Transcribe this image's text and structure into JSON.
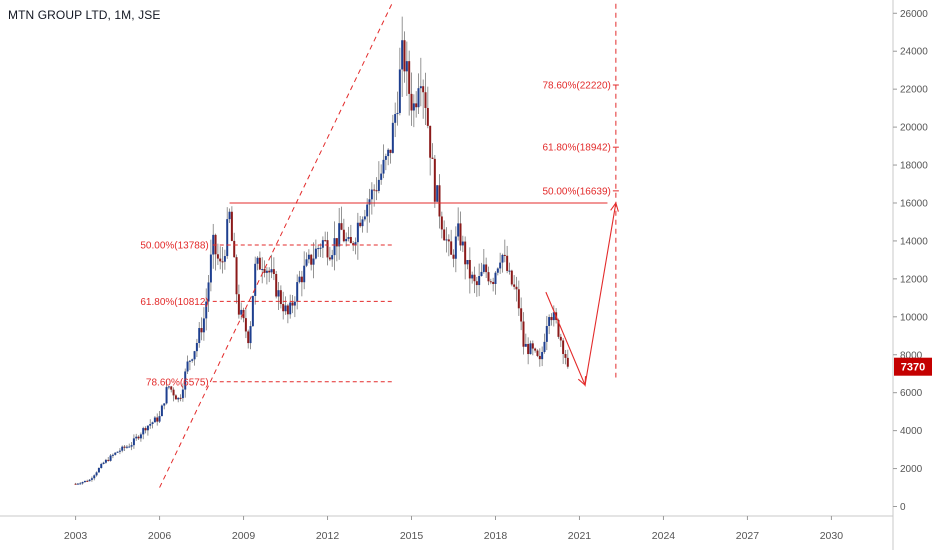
{
  "header": {
    "title": "MTN GROUP LTD, 1M, JSE"
  },
  "price_badge": {
    "value": "7370",
    "color": "#c40000"
  },
  "colors": {
    "up": "#1e3f8f",
    "down": "#8b1a1a",
    "annotation": "#e32b2b",
    "grid": "#e6e6e6",
    "axis_text": "#555555"
  },
  "chart_data": {
    "type": "candlestick",
    "title": "MTN GROUP LTD, 1M, JSE",
    "xlabel": "",
    "ylabel": "",
    "x_ticks": [
      "2003",
      "2006",
      "2009",
      "2012",
      "2015",
      "2018",
      "2021",
      "2024",
      "2027",
      "2030"
    ],
    "y_ticks": [
      0,
      2000,
      4000,
      6000,
      8000,
      10000,
      12000,
      14000,
      16000,
      18000,
      20000,
      22000,
      24000,
      26000
    ],
    "xlim": [
      2000.3,
      2032.2
    ],
    "ylim": [
      -500,
      26700
    ],
    "last_price": 7370,
    "price_path": [
      [
        2003.0,
        1200
      ],
      [
        2003.5,
        1400
      ],
      [
        2004.0,
        2300
      ],
      [
        2004.5,
        2900
      ],
      [
        2005.0,
        3300
      ],
      [
        2005.5,
        4200
      ],
      [
        2006.0,
        4700
      ],
      [
        2006.3,
        6400
      ],
      [
        2006.7,
        5600
      ],
      [
        2007.0,
        7500
      ],
      [
        2007.3,
        8500
      ],
      [
        2007.6,
        10000
      ],
      [
        2007.9,
        13800
      ],
      [
        2008.2,
        12500
      ],
      [
        2008.5,
        15300
      ],
      [
        2008.8,
        10500
      ],
      [
        2009.2,
        8800
      ],
      [
        2009.4,
        12500
      ],
      [
        2009.7,
        13000
      ],
      [
        2010.0,
        12100
      ],
      [
        2010.3,
        11000
      ],
      [
        2010.6,
        10000
      ],
      [
        2011.0,
        12000
      ],
      [
        2011.4,
        13000
      ],
      [
        2011.8,
        14000
      ],
      [
        2012.1,
        13600
      ],
      [
        2012.5,
        14500
      ],
      [
        2012.8,
        13500
      ],
      [
        2013.2,
        15500
      ],
      [
        2013.6,
        16500
      ],
      [
        2013.9,
        17500
      ],
      [
        2014.2,
        18500
      ],
      [
        2014.4,
        20500
      ],
      [
        2014.7,
        24000
      ],
      [
        2014.9,
        22000
      ],
      [
        2015.1,
        21000
      ],
      [
        2015.3,
        23500
      ],
      [
        2015.5,
        21500
      ],
      [
        2015.8,
        17000
      ],
      [
        2016.1,
        15000
      ],
      [
        2016.4,
        13000
      ],
      [
        2016.7,
        14500
      ],
      [
        2017.0,
        12500
      ],
      [
        2017.3,
        11500
      ],
      [
        2017.6,
        12500
      ],
      [
        2017.9,
        12000
      ],
      [
        2018.2,
        13500
      ],
      [
        2018.5,
        12000
      ],
      [
        2018.8,
        11000
      ],
      [
        2019.0,
        8500
      ],
      [
        2019.3,
        8200
      ],
      [
        2019.6,
        7500
      ],
      [
        2019.9,
        10500
      ],
      [
        2020.2,
        9500
      ],
      [
        2020.4,
        8500
      ],
      [
        2020.6,
        7370
      ]
    ],
    "annotations": {
      "support_line": {
        "value": 16000,
        "from": 2008.5,
        "to": 2022.0
      },
      "fib_left": [
        {
          "label": "50.00%(13788)",
          "value": 13788,
          "from": 2007.9,
          "to": 2014.3
        },
        {
          "label": "61.80%(10812)",
          "value": 10812,
          "from": 2007.9,
          "to": 2014.3
        },
        {
          "label": "78.60%(6575)",
          "value": 6575,
          "from": 2007.9,
          "to": 2014.3
        }
      ],
      "fib_right": [
        {
          "label": "78.60%(22220)",
          "value": 22220
        },
        {
          "label": "61.80%(18942)",
          "value": 18942
        },
        {
          "label": "50.00%(16639)",
          "value": 16639
        }
      ],
      "trend_line": {
        "from": [
          2006.0,
          1000
        ],
        "to": [
          2014.3,
          26500
        ]
      },
      "projection_path": [
        [
          2019.8,
          11300
        ],
        [
          2021.2,
          6400
        ],
        [
          2022.3,
          16000
        ]
      ],
      "vertical_dashed": {
        "x": 2022.3,
        "from": 6800,
        "to": 26500
      }
    }
  }
}
